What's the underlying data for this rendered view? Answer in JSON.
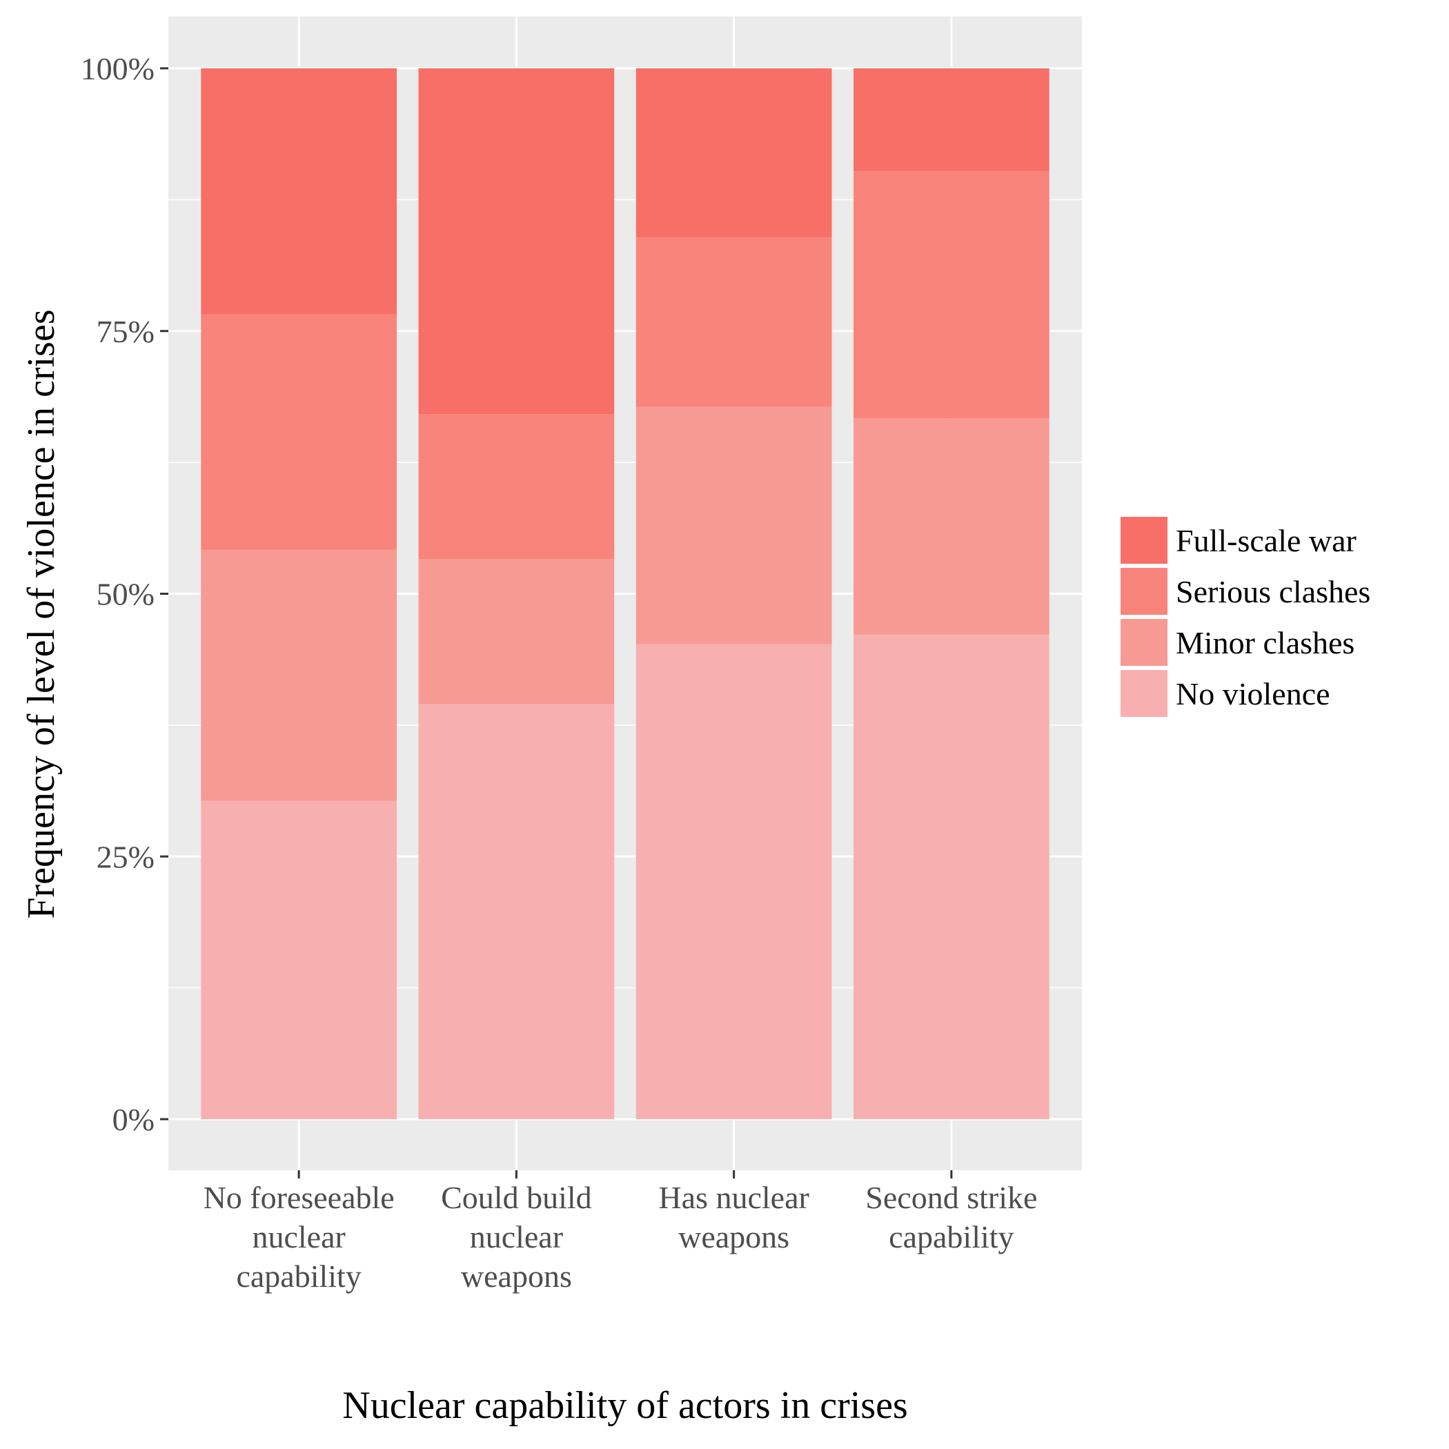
{
  "chart_data": {
    "type": "bar",
    "stacked": true,
    "percent": true,
    "xlabel": "Nuclear capability of actors in crises",
    "ylabel": "Frequency of level of violence in crises",
    "ylim": [
      0,
      1
    ],
    "yticks": [
      {
        "value": 0,
        "label": "0%"
      },
      {
        "value": 0.25,
        "label": "25%"
      },
      {
        "value": 0.5,
        "label": "50%"
      },
      {
        "value": 0.75,
        "label": "75%"
      },
      {
        "value": 1,
        "label": "100%"
      }
    ],
    "categories": [
      [
        "No foreseeable",
        "nuclear",
        "capability"
      ],
      [
        "Could build",
        "nuclear",
        "weapons"
      ],
      [
        "Has nuclear",
        "weapons"
      ],
      [
        "Second strike",
        "capability"
      ]
    ],
    "series": [
      {
        "name": "No violence",
        "color": "#F7B0AF",
        "values": [
          0.303,
          0.395,
          0.452,
          0.461
        ]
      },
      {
        "name": "Minor clashes",
        "color": "#F79A93",
        "values": [
          0.239,
          0.138,
          0.226,
          0.206
        ]
      },
      {
        "name": "Serious clashes",
        "color": "#F8847B",
        "values": [
          0.224,
          0.138,
          0.161,
          0.235
        ]
      },
      {
        "name": "Full-scale war",
        "color": "#F76F66",
        "values": [
          0.234,
          0.329,
          0.161,
          0.098
        ]
      }
    ],
    "legend": {
      "position": "right",
      "order": [
        "Full-scale war",
        "Serious clashes",
        "Minor clashes",
        "No violence"
      ]
    },
    "grid": true,
    "panel_background": "#EBEBEB"
  }
}
